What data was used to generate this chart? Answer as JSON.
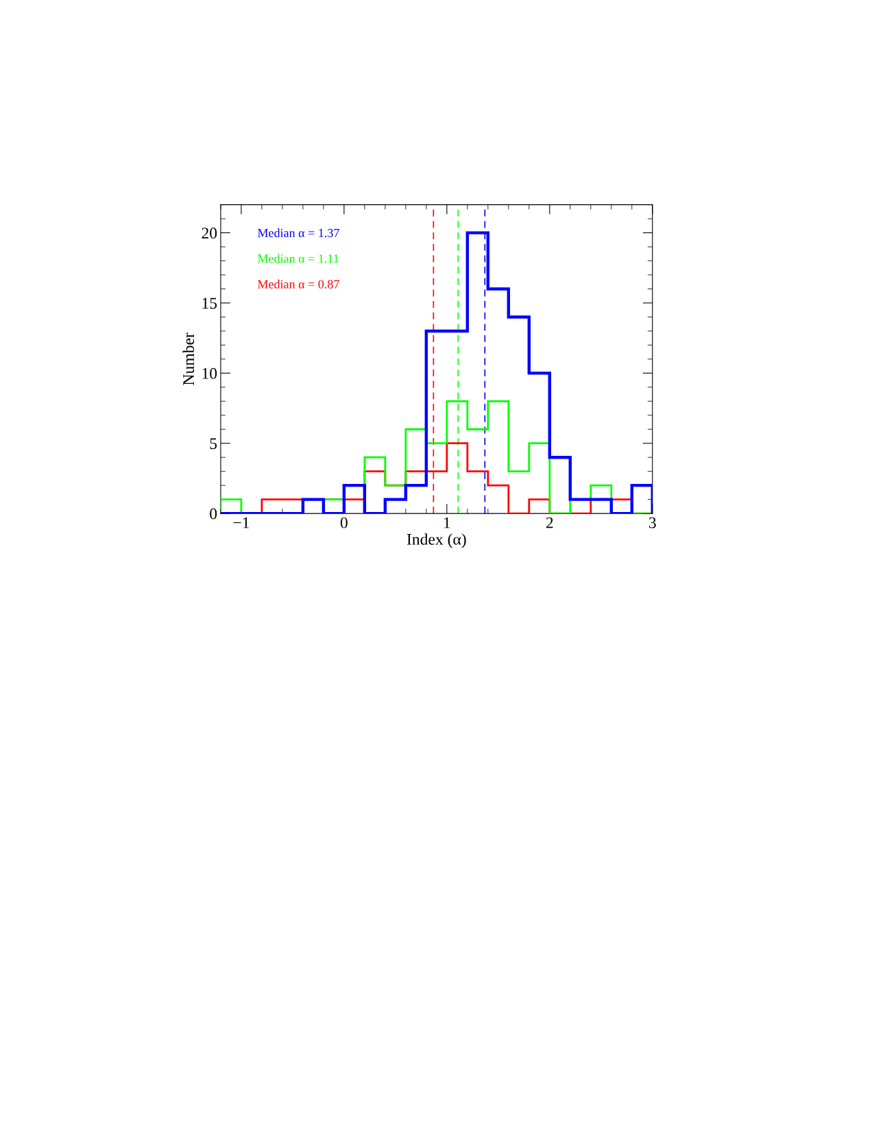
{
  "chart_data": {
    "type": "histogram",
    "xlabel": "Index (α)",
    "ylabel": "Number",
    "bins": [
      -1.2,
      -1.0,
      -0.8,
      -0.6,
      -0.4,
      -0.2,
      0.0,
      0.2,
      0.4,
      0.6,
      0.8,
      1.0,
      1.2,
      1.4,
      1.6,
      1.8,
      2.0,
      2.2,
      2.4,
      2.6,
      2.8,
      3.0
    ],
    "series": [
      {
        "color": "#0000ff",
        "values": [
          0,
          0,
          0,
          0,
          1,
          0,
          2,
          0,
          1,
          2,
          13,
          13,
          20,
          16,
          14,
          10,
          4,
          1,
          1,
          0,
          2
        ]
      },
      {
        "color": "#00ff00",
        "values": [
          1,
          0,
          0,
          0,
          1,
          1,
          2,
          4,
          2,
          6,
          5,
          8,
          6,
          8,
          3,
          5,
          0,
          1,
          2,
          0,
          0
        ]
      },
      {
        "color": "#ff0000",
        "values": [
          0,
          0,
          1,
          1,
          1,
          1,
          1,
          3,
          2,
          3,
          3,
          5,
          3,
          2,
          0,
          1,
          0,
          0,
          1,
          1,
          0
        ]
      }
    ],
    "ref_lines": [
      {
        "axis": "x",
        "value": 1.37,
        "color": "#0000ff",
        "line_style": "dashed"
      },
      {
        "axis": "x",
        "value": 1.11,
        "color": "#00ff00",
        "line_style": "dashed"
      },
      {
        "axis": "x",
        "value": 0.87,
        "color": "#ff0000",
        "line_style": "dashed"
      }
    ],
    "annotations": [
      "Median α = 1.37",
      "Median α = 1.11",
      "Median α = 0.87"
    ],
    "xlim": [
      -1.2,
      3.0
    ],
    "xticks": [
      {
        "value": -1,
        "label": "−1"
      },
      0,
      1,
      2,
      3
    ],
    "ylim": [
      0,
      22
    ],
    "yticks": [
      0,
      5,
      10,
      15,
      20
    ],
    "grid": false,
    "legend": false
  }
}
